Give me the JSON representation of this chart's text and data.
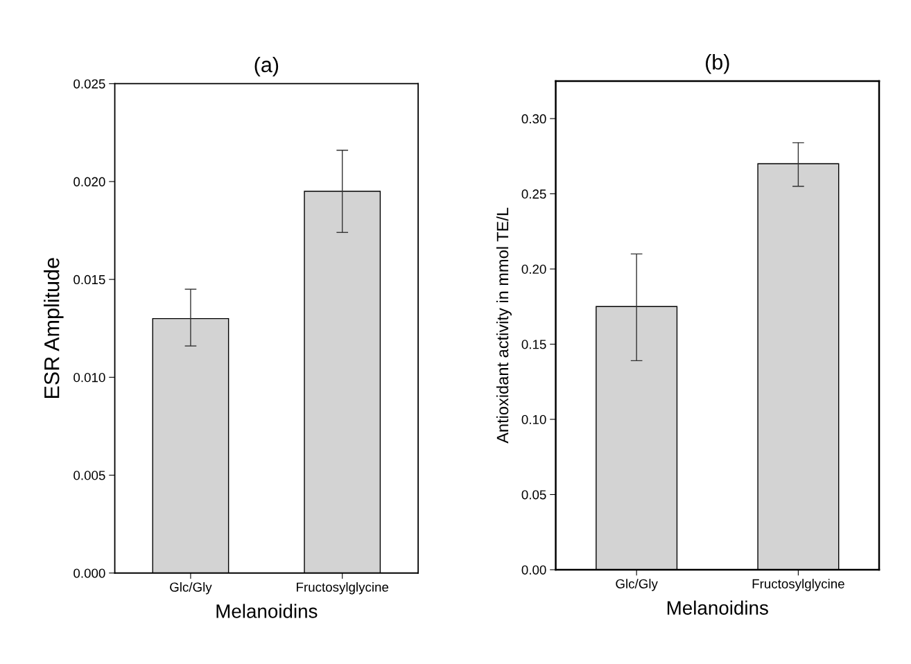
{
  "chart_data": [
    {
      "type": "bar",
      "title": "(a)",
      "xlabel": "Melanoidins",
      "ylabel": "ESR Amplitude",
      "categories": [
        "Glc/Gly",
        "Fructosylglycine"
      ],
      "values": [
        0.013,
        0.0195
      ],
      "errors": [
        [
          0.0116,
          0.0145
        ],
        [
          0.0174,
          0.0216
        ]
      ],
      "color": "#d3d3d3",
      "ylim": [
        0,
        0.025
      ],
      "yticks": [
        {
          "value": 0,
          "label": "0.000"
        },
        {
          "value": 0.005,
          "label": "0.005"
        },
        {
          "value": 0.01,
          "label": "0.010"
        },
        {
          "value": 0.015,
          "label": "0.015"
        },
        {
          "value": 0.02,
          "label": "0.020"
        },
        {
          "value": 0.025,
          "label": "0.025"
        }
      ],
      "grid": false,
      "legend": false
    },
    {
      "type": "bar",
      "title": "(b)",
      "xlabel": "Melanoidins",
      "ylabel": "Antioxidant activity in mmol TE/L",
      "categories": [
        "Glc/Gly",
        "Fructosylglycine"
      ],
      "values": [
        0.175,
        0.27
      ],
      "errors": [
        [
          0.139,
          0.21
        ],
        [
          0.255,
          0.284
        ]
      ],
      "color": "#d3d3d3",
      "ylim": [
        0,
        0.325
      ],
      "yticks": [
        {
          "value": 0,
          "label": "0.00"
        },
        {
          "value": 0.05,
          "label": "0.05"
        },
        {
          "value": 0.1,
          "label": "0.10"
        },
        {
          "value": 0.15,
          "label": "0.15"
        },
        {
          "value": 0.2,
          "label": "0.20"
        },
        {
          "value": 0.25,
          "label": "0.25"
        },
        {
          "value": 0.3,
          "label": "0.30"
        }
      ],
      "grid": false,
      "legend": false
    }
  ]
}
